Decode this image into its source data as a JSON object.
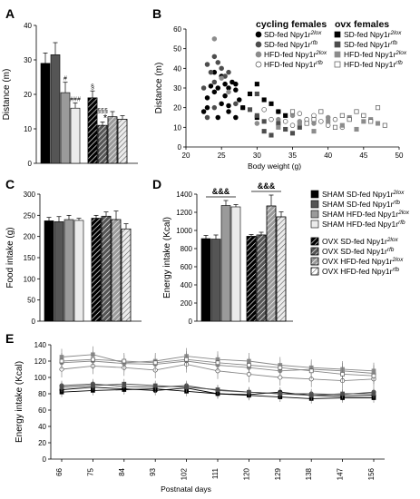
{
  "panel_letters": {
    "a": "A",
    "b": "B",
    "c": "C",
    "d": "D",
    "e": "E"
  },
  "legend_b": {
    "cycling_header": "cycling females",
    "ovx_header": "ovx females",
    "cycling": [
      {
        "prefix": "SD-fed Npy1r",
        "sup": "2lox",
        "marker": "circle",
        "color": "#000000"
      },
      {
        "prefix": "SD-fed Npy1r",
        "sup": "rfb",
        "marker": "circle",
        "color": "#4d4d4d"
      },
      {
        "prefix": "HFD-fed Npy1r",
        "sup": "2lox",
        "marker": "circle",
        "color": "#8c8c8c"
      },
      {
        "prefix": "HFD-fed Npy1r",
        "sup": "rfb",
        "marker": "circle",
        "color": "#ffffff"
      }
    ],
    "ovx": [
      {
        "prefix": "SD-fed Npy1r",
        "sup": "2lox",
        "marker": "square",
        "color": "#000000"
      },
      {
        "prefix": "SD-fed Npy1r",
        "sup": "rfb",
        "marker": "square",
        "color": "#4d4d4d"
      },
      {
        "prefix": "HFD-fed Npy1r",
        "sup": "2lox",
        "marker": "square",
        "color": "#8c8c8c"
      },
      {
        "prefix": "HFD-fed Npy1r",
        "sup": "rfb",
        "marker": "square",
        "color": "#ffffff"
      }
    ]
  },
  "legend_d": [
    {
      "prefix": "SHAM SD-fed Npy1r",
      "sup": "2lox",
      "fill": "#000000",
      "hatch": false
    },
    {
      "prefix": "SHAM SD-fed Npy1r",
      "sup": "rfb",
      "fill": "#555555",
      "hatch": false
    },
    {
      "prefix": "SHAM HFD-fed Npy1r",
      "sup": "2lox",
      "fill": "#9a9a9a",
      "hatch": false
    },
    {
      "prefix": "SHAM HFD-fed Npy1r",
      "sup": "rfb",
      "fill": "#ebebeb",
      "hatch": false
    },
    {
      "prefix": "OVX SD-fed Npy1r",
      "sup": "2lox",
      "fill": "#000000",
      "hatch": true
    },
    {
      "prefix": "OVX SD-fed Npy1r",
      "sup": "rfb",
      "fill": "#555555",
      "hatch": true
    },
    {
      "prefix": "OVX HFD-fed Npy1r",
      "sup": "2lox",
      "fill": "#9a9a9a",
      "hatch": true
    },
    {
      "prefix": "OVX HFD-fed Npy1r",
      "sup": "rfb",
      "fill": "#ffffff",
      "hatch": true
    }
  ],
  "chart_data": [
    {
      "panel": "A",
      "type": "bar",
      "ylabel": "Distance (m)",
      "ylim": [
        0,
        40
      ],
      "yticks": [
        0,
        10,
        20,
        30,
        40
      ],
      "series": [
        {
          "values": [
            29.0,
            31.5,
            20.5,
            16.0
          ],
          "errors": [
            3.0,
            3.5,
            3.0,
            1.5
          ],
          "hatch": false
        },
        {
          "values": [
            19.0,
            11.0,
            13.5,
            12.8
          ],
          "errors": [
            2.0,
            1.0,
            1.5,
            1.0
          ],
          "hatch": true
        }
      ],
      "fills": [
        "#000000",
        "#555555",
        "#9a9a9a",
        "#ebebeb"
      ],
      "annotations": [
        {
          "text": "#",
          "group": 0,
          "bar": 2
        },
        {
          "text": "###",
          "group": 0,
          "bar": 3
        },
        {
          "text": "§",
          "group": 1,
          "bar": 0
        },
        {
          "text": "§§§",
          "group": 1,
          "bar": 1
        },
        {
          "text": "*",
          "group": 1,
          "bar": 1
        }
      ]
    },
    {
      "panel": "B",
      "type": "scatter",
      "xlabel": "Body weight (g)",
      "ylabel": "Distance (m)",
      "xlim": [
        20,
        50
      ],
      "ylim": [
        0,
        60
      ],
      "xticks": [
        20,
        25,
        30,
        35,
        40,
        45,
        50
      ],
      "yticks": [
        0,
        10,
        20,
        30,
        40,
        50,
        60
      ],
      "series": [
        {
          "marker": "circle",
          "color": "#000000",
          "points": [
            [
              22.5,
              18
            ],
            [
              23,
              25
            ],
            [
              23.5,
              31
            ],
            [
              24,
              28
            ],
            [
              24.5,
              30
            ],
            [
              25,
              22
            ],
            [
              25.5,
              26
            ],
            [
              26,
              21
            ],
            [
              26.5,
              33
            ],
            [
              25,
              36
            ],
            [
              24,
              38
            ],
            [
              26,
              30
            ],
            [
              27,
              29
            ],
            [
              27.5,
              24
            ],
            [
              27,
              15
            ],
            [
              26,
              18
            ],
            [
              24.5,
              15
            ],
            [
              23,
              20
            ],
            [
              25.5,
              32
            ],
            [
              27,
              32
            ]
          ]
        },
        {
          "marker": "circle",
          "color": "#4d4d4d",
          "points": [
            [
              23,
              42
            ],
            [
              23.5,
              38
            ],
            [
              24,
              46
            ],
            [
              24.5,
              43
            ],
            [
              25,
              40
            ],
            [
              24,
              33
            ],
            [
              26,
              38
            ],
            [
              22.5,
              30
            ],
            [
              25.5,
              36
            ],
            [
              24,
              20
            ],
            [
              23,
              15
            ],
            [
              27,
              22
            ]
          ]
        },
        {
          "marker": "circle",
          "color": "#8c8c8c",
          "points": [
            [
              24,
              55
            ],
            [
              25,
              35
            ],
            [
              26,
              28
            ],
            [
              28,
              20
            ],
            [
              30,
              12
            ],
            [
              33,
              14
            ],
            [
              35,
              16
            ],
            [
              36,
              13
            ],
            [
              38,
              12
            ],
            [
              40,
              15
            ]
          ]
        },
        {
          "marker": "circle",
          "color": "#ffffff",
          "points": [
            [
              31,
              19
            ],
            [
              32,
              14
            ],
            [
              33,
              18
            ],
            [
              34,
              13
            ],
            [
              35,
              11
            ],
            [
              36,
              17
            ],
            [
              37,
              14
            ],
            [
              38,
              16
            ],
            [
              39,
              13
            ],
            [
              40,
              11
            ],
            [
              41,
              14
            ],
            [
              42,
              10
            ]
          ]
        },
        {
          "marker": "square",
          "color": "#000000",
          "points": [
            [
              28,
              20
            ],
            [
              29,
              27
            ],
            [
              30,
              32
            ],
            [
              31,
              24
            ],
            [
              32,
              22
            ],
            [
              33,
              18
            ],
            [
              30,
              15
            ],
            [
              34,
              16
            ]
          ]
        },
        {
          "marker": "square",
          "color": "#4d4d4d",
          "points": [
            [
              29,
              19
            ],
            [
              30,
              27
            ],
            [
              31,
              8
            ],
            [
              32,
              6
            ],
            [
              33,
              12
            ],
            [
              34,
              9
            ],
            [
              35,
              7
            ],
            [
              36,
              10
            ],
            [
              31,
              13
            ],
            [
              30,
              16
            ]
          ]
        },
        {
          "marker": "square",
          "color": "#8c8c8c",
          "points": [
            [
              33,
              10
            ],
            [
              36,
              12
            ],
            [
              38,
              8
            ],
            [
              40,
              13
            ],
            [
              42,
              11
            ],
            [
              44,
              9
            ],
            [
              46,
              14
            ],
            [
              47,
              12
            ],
            [
              43,
              15
            ],
            [
              45,
              13
            ]
          ]
        },
        {
          "marker": "square",
          "color": "#ffffff",
          "points": [
            [
              35,
              18
            ],
            [
              37,
              12
            ],
            [
              39,
              18
            ],
            [
              41,
              10
            ],
            [
              43,
              14
            ],
            [
              44,
              18
            ],
            [
              45,
              16
            ],
            [
              47,
              20
            ],
            [
              48,
              11
            ],
            [
              38,
              14
            ],
            [
              42,
              16
            ],
            [
              46,
              13
            ]
          ]
        }
      ]
    },
    {
      "panel": "C",
      "type": "bar",
      "ylabel": "Food intake (g)",
      "ylim": [
        0,
        300
      ],
      "yticks": [
        0,
        50,
        100,
        150,
        200,
        250,
        300
      ],
      "series": [
        {
          "values": [
            237,
            235,
            240,
            238
          ],
          "errors": [
            8,
            12,
            10,
            5
          ],
          "hatch": false
        },
        {
          "values": [
            243,
            248,
            240,
            218
          ],
          "errors": [
            7,
            10,
            20,
            12
          ],
          "hatch": true
        }
      ],
      "fills": [
        "#000000",
        "#555555",
        "#9a9a9a",
        "#ebebeb"
      ]
    },
    {
      "panel": "D",
      "type": "bar",
      "ylabel": "Energy intake (Kcal)",
      "ylim": [
        0,
        1400
      ],
      "yticks": [
        0,
        200,
        400,
        600,
        800,
        1000,
        1200,
        1400
      ],
      "series": [
        {
          "values": [
            910,
            905,
            1275,
            1260
          ],
          "errors": [
            35,
            45,
            55,
            25
          ],
          "hatch": false
        },
        {
          "values": [
            935,
            950,
            1270,
            1150
          ],
          "errors": [
            20,
            30,
            120,
            55
          ],
          "hatch": true
        }
      ],
      "fills": [
        "#000000",
        "#555555",
        "#9a9a9a",
        "#ebebeb"
      ],
      "annotations": [
        {
          "text": "&&&",
          "group": 0
        },
        {
          "text": "&&&",
          "group": 1
        }
      ]
    },
    {
      "panel": "E",
      "type": "line",
      "xlabel": "Postnatal days",
      "ylabel": "Energy intake (Kcal)",
      "ylim": [
        0,
        140
      ],
      "yticks": [
        0,
        20,
        40,
        60,
        80,
        100,
        120,
        140
      ],
      "categories": [
        "66",
        "75",
        "84",
        "93",
        "102",
        "111",
        "120",
        "129",
        "138",
        "147",
        "156"
      ],
      "series": [
        {
          "marker": "circle",
          "color": "#000000",
          "values": [
            85,
            88,
            86,
            84,
            87,
            80,
            79,
            82,
            78,
            77,
            78
          ]
        },
        {
          "marker": "circle",
          "color": "#4d4d4d",
          "values": [
            90,
            92,
            89,
            88,
            90,
            84,
            82,
            80,
            80,
            79,
            82
          ]
        },
        {
          "marker": "circle",
          "color": "#8c8c8c",
          "values": [
            118,
            120,
            117,
            116,
            120,
            115,
            112,
            108,
            110,
            108,
            105
          ]
        },
        {
          "marker": "circle",
          "color": "#ffffff",
          "values": [
            110,
            114,
            112,
            109,
            116,
            108,
            104,
            100,
            98,
            96,
            98
          ]
        },
        {
          "marker": "square",
          "color": "#000000",
          "values": [
            82,
            84,
            85,
            86,
            83,
            80,
            78,
            76,
            74,
            75,
            75
          ]
        },
        {
          "marker": "square",
          "color": "#4d4d4d",
          "values": [
            88,
            90,
            92,
            90,
            88,
            85,
            82,
            80,
            78,
            80,
            80
          ]
        },
        {
          "marker": "square",
          "color": "#8c8c8c",
          "values": [
            125,
            128,
            118,
            120,
            126,
            122,
            120,
            115,
            112,
            110,
            108
          ]
        },
        {
          "marker": "square",
          "color": "#ffffff",
          "values": [
            120,
            122,
            120,
            118,
            122,
            118,
            115,
            112,
            108,
            104,
            102
          ]
        }
      ]
    }
  ]
}
